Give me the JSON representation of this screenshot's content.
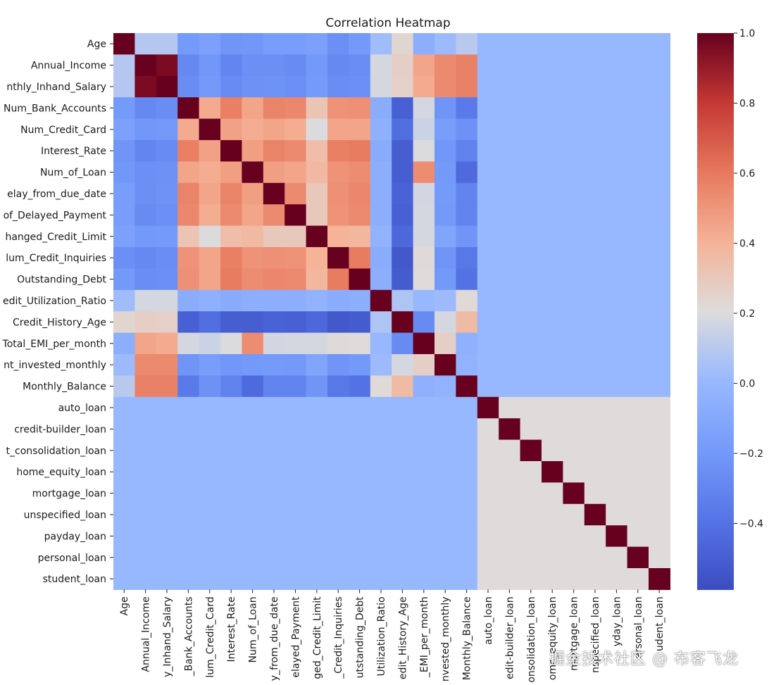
{
  "chart_data": {
    "type": "heatmap",
    "title": "Correlation Heatmap",
    "xlabel": "",
    "ylabel": "",
    "colormap": "coolwarm",
    "colorbar_range": [
      -0.59,
      1.0
    ],
    "colorbar_ticks": [
      -0.4,
      -0.2,
      0.0,
      0.2,
      0.4,
      0.6,
      0.8,
      1.0
    ],
    "colorbar_tick_labels": [
      "−0.4",
      "−0.2",
      "0.0",
      "0.2",
      "0.4",
      "0.6",
      "0.8",
      "1.0"
    ],
    "y_tick_labels": [
      "Age",
      "Annual_Income",
      "nthly_Inhand_Salary",
      "Num_Bank_Accounts",
      "Num_Credit_Card",
      "Interest_Rate",
      "Num_of_Loan",
      "elay_from_due_date",
      "of_Delayed_Payment",
      "hanged_Credit_Limit",
      "lum_Credit_Inquiries",
      "Outstanding_Debt",
      "edit_Utilization_Ratio",
      "Credit_History_Age",
      "Total_EMI_per_month",
      "nt_invested_monthly",
      "Monthly_Balance",
      "auto_loan",
      "credit-builder_loan",
      "t_consolidation_loan",
      "home_equity_loan",
      "mortgage_loan",
      "unspecified_loan",
      "payday_loan",
      "personal_loan",
      "student_loan"
    ],
    "x_tick_labels": [
      "Age",
      "Annual_Income",
      "y_Inhand_Salary",
      "_Bank_Accounts",
      "lum_Credit_Card",
      "Interest_Rate",
      "Num_of_Loan",
      "y_from_due_date",
      "elayed_Payment",
      "ged_Credit_Limit",
      "_Credit_Inquiries",
      "utstanding_Debt",
      "Utilization_Ratio",
      "edit_History_Age",
      "_EMI_per_month",
      "nvested_monthly",
      "Monthly_Balance",
      "auto_loan",
      "edit-builder_loan",
      "onsolidation_loan",
      "ome_equity_loan",
      "mortgage_loan",
      "nspecified_loan",
      "yday_loan",
      "ersonal_loan",
      "udent_loan"
    ],
    "matrix": [
      [
        1.0,
        0.09,
        0.09,
        -0.19,
        -0.15,
        -0.22,
        -0.21,
        -0.17,
        -0.17,
        -0.15,
        -0.25,
        -0.2,
        0.03,
        0.24,
        -0.06,
        0.02,
        0.1,
        0.0,
        0.0,
        0.0,
        0.0,
        0.0,
        0.0,
        0.0,
        0.0,
        0.0
      ],
      [
        0.09,
        1.0,
        0.96,
        -0.28,
        -0.21,
        -0.3,
        -0.25,
        -0.25,
        -0.27,
        -0.2,
        -0.28,
        -0.26,
        0.18,
        0.27,
        0.45,
        0.54,
        0.57,
        0.0,
        0.0,
        0.0,
        0.0,
        0.0,
        0.0,
        0.0,
        0.0,
        0.0
      ],
      [
        0.09,
        0.96,
        1.0,
        -0.26,
        -0.2,
        -0.27,
        -0.24,
        -0.23,
        -0.25,
        -0.19,
        -0.26,
        -0.25,
        0.18,
        0.26,
        0.43,
        0.54,
        0.57,
        0.0,
        0.0,
        0.0,
        0.0,
        0.0,
        0.0,
        0.0,
        0.0,
        0.0
      ],
      [
        -0.19,
        -0.28,
        -0.26,
        1.0,
        0.43,
        0.58,
        0.45,
        0.56,
        0.55,
        0.32,
        0.51,
        0.52,
        -0.07,
        -0.49,
        0.18,
        -0.22,
        -0.36,
        0.0,
        0.0,
        0.0,
        0.0,
        0.0,
        0.0,
        0.0,
        0.0,
        0.0
      ],
      [
        -0.15,
        -0.21,
        -0.2,
        0.43,
        1.0,
        0.46,
        0.42,
        0.45,
        0.42,
        0.2,
        0.45,
        0.45,
        -0.05,
        -0.42,
        0.15,
        -0.17,
        -0.24,
        0.0,
        0.0,
        0.0,
        0.0,
        0.0,
        0.0,
        0.0,
        0.0,
        0.0
      ],
      [
        -0.22,
        -0.3,
        -0.27,
        0.58,
        0.46,
        1.0,
        0.47,
        0.56,
        0.54,
        0.35,
        0.58,
        0.59,
        -0.08,
        -0.5,
        0.2,
        -0.21,
        -0.32,
        0.0,
        0.0,
        0.0,
        0.0,
        0.0,
        0.0,
        0.0,
        0.0,
        0.0
      ],
      [
        -0.21,
        -0.25,
        -0.24,
        0.45,
        0.42,
        0.47,
        1.0,
        0.47,
        0.45,
        0.37,
        0.51,
        0.53,
        -0.06,
        -0.5,
        0.53,
        -0.2,
        -0.44,
        0.0,
        0.0,
        0.0,
        0.0,
        0.0,
        0.0,
        0.0,
        0.0,
        0.0
      ],
      [
        -0.17,
        -0.25,
        -0.23,
        0.56,
        0.45,
        0.56,
        0.47,
        1.0,
        0.54,
        0.3,
        0.52,
        0.55,
        -0.06,
        -0.48,
        0.17,
        -0.19,
        -0.31,
        0.0,
        0.0,
        0.0,
        0.0,
        0.0,
        0.0,
        0.0,
        0.0,
        0.0
      ],
      [
        -0.17,
        -0.27,
        -0.25,
        0.55,
        0.42,
        0.54,
        0.45,
        0.54,
        1.0,
        0.3,
        0.51,
        0.54,
        -0.06,
        -0.49,
        0.18,
        -0.2,
        -0.31,
        0.0,
        0.0,
        0.0,
        0.0,
        0.0,
        0.0,
        0.0,
        0.0,
        0.0
      ],
      [
        -0.15,
        -0.2,
        -0.19,
        0.32,
        0.2,
        0.35,
        0.37,
        0.3,
        0.3,
        1.0,
        0.4,
        0.38,
        -0.03,
        -0.45,
        0.18,
        -0.12,
        -0.22,
        0.0,
        0.0,
        0.0,
        0.0,
        0.0,
        0.0,
        0.0,
        0.0,
        0.0
      ],
      [
        -0.25,
        -0.28,
        -0.26,
        0.51,
        0.45,
        0.58,
        0.51,
        0.52,
        0.51,
        0.4,
        1.0,
        0.59,
        -0.07,
        -0.53,
        0.22,
        -0.22,
        -0.37,
        0.0,
        0.0,
        0.0,
        0.0,
        0.0,
        0.0,
        0.0,
        0.0,
        0.0
      ],
      [
        -0.2,
        -0.26,
        -0.25,
        0.52,
        0.45,
        0.59,
        0.53,
        0.55,
        0.54,
        0.38,
        0.59,
        1.0,
        -0.06,
        -0.51,
        0.21,
        -0.2,
        -0.4,
        0.0,
        0.0,
        0.0,
        0.0,
        0.0,
        0.0,
        0.0,
        0.0,
        0.0
      ],
      [
        0.03,
        0.18,
        0.18,
        -0.07,
        -0.05,
        -0.08,
        -0.06,
        -0.06,
        -0.06,
        -0.03,
        -0.07,
        -0.06,
        1.0,
        0.07,
        0.0,
        0.02,
        0.22,
        0.0,
        0.0,
        0.0,
        0.0,
        0.0,
        0.0,
        0.0,
        0.0,
        0.0
      ],
      [
        0.24,
        0.27,
        0.26,
        -0.49,
        -0.42,
        -0.5,
        -0.5,
        -0.48,
        -0.49,
        -0.45,
        -0.53,
        -0.51,
        0.07,
        1.0,
        -0.27,
        0.18,
        0.36,
        0.0,
        0.0,
        0.0,
        0.0,
        0.0,
        0.0,
        0.0,
        0.0,
        0.0
      ],
      [
        -0.06,
        0.45,
        0.43,
        0.18,
        0.15,
        0.2,
        0.53,
        0.17,
        0.18,
        0.18,
        0.22,
        0.21,
        0.0,
        -0.27,
        1.0,
        0.27,
        -0.05,
        0.0,
        0.0,
        0.0,
        0.0,
        0.0,
        0.0,
        0.0,
        0.0,
        0.0
      ],
      [
        0.02,
        0.54,
        0.54,
        -0.22,
        -0.17,
        -0.21,
        -0.2,
        -0.19,
        -0.2,
        -0.12,
        -0.22,
        -0.2,
        0.02,
        0.18,
        0.27,
        1.0,
        -0.03,
        0.0,
        0.0,
        0.0,
        0.0,
        0.0,
        0.0,
        0.0,
        0.0,
        0.0
      ],
      [
        0.1,
        0.57,
        0.57,
        -0.36,
        -0.24,
        -0.32,
        -0.44,
        -0.31,
        -0.31,
        -0.22,
        -0.37,
        -0.4,
        0.22,
        0.36,
        -0.05,
        -0.03,
        1.0,
        0.0,
        0.0,
        0.0,
        0.0,
        0.0,
        0.0,
        0.0,
        0.0,
        0.0
      ],
      [
        0.0,
        0.0,
        0.0,
        0.0,
        0.0,
        0.0,
        0.0,
        0.0,
        0.0,
        0.0,
        0.0,
        0.0,
        0.0,
        0.0,
        0.0,
        0.0,
        0.0,
        1.0,
        0.21,
        0.21,
        0.21,
        0.21,
        0.21,
        0.21,
        0.21,
        0.21
      ],
      [
        0.0,
        0.0,
        0.0,
        0.0,
        0.0,
        0.0,
        0.0,
        0.0,
        0.0,
        0.0,
        0.0,
        0.0,
        0.0,
        0.0,
        0.0,
        0.0,
        0.0,
        0.21,
        1.0,
        0.21,
        0.21,
        0.21,
        0.21,
        0.21,
        0.21,
        0.21
      ],
      [
        0.0,
        0.0,
        0.0,
        0.0,
        0.0,
        0.0,
        0.0,
        0.0,
        0.0,
        0.0,
        0.0,
        0.0,
        0.0,
        0.0,
        0.0,
        0.0,
        0.0,
        0.21,
        0.21,
        1.0,
        0.21,
        0.21,
        0.21,
        0.21,
        0.21,
        0.21
      ],
      [
        0.0,
        0.0,
        0.0,
        0.0,
        0.0,
        0.0,
        0.0,
        0.0,
        0.0,
        0.0,
        0.0,
        0.0,
        0.0,
        0.0,
        0.0,
        0.0,
        0.0,
        0.21,
        0.21,
        0.21,
        1.0,
        0.21,
        0.21,
        0.21,
        0.21,
        0.21
      ],
      [
        0.0,
        0.0,
        0.0,
        0.0,
        0.0,
        0.0,
        0.0,
        0.0,
        0.0,
        0.0,
        0.0,
        0.0,
        0.0,
        0.0,
        0.0,
        0.0,
        0.0,
        0.21,
        0.21,
        0.21,
        0.21,
        1.0,
        0.21,
        0.21,
        0.21,
        0.21
      ],
      [
        0.0,
        0.0,
        0.0,
        0.0,
        0.0,
        0.0,
        0.0,
        0.0,
        0.0,
        0.0,
        0.0,
        0.0,
        0.0,
        0.0,
        0.0,
        0.0,
        0.0,
        0.21,
        0.21,
        0.21,
        0.21,
        0.21,
        1.0,
        0.21,
        0.21,
        0.21
      ],
      [
        0.0,
        0.0,
        0.0,
        0.0,
        0.0,
        0.0,
        0.0,
        0.0,
        0.0,
        0.0,
        0.0,
        0.0,
        0.0,
        0.0,
        0.0,
        0.0,
        0.0,
        0.21,
        0.21,
        0.21,
        0.21,
        0.21,
        0.21,
        1.0,
        0.21,
        0.21
      ],
      [
        0.0,
        0.0,
        0.0,
        0.0,
        0.0,
        0.0,
        0.0,
        0.0,
        0.0,
        0.0,
        0.0,
        0.0,
        0.0,
        0.0,
        0.0,
        0.0,
        0.0,
        0.21,
        0.21,
        0.21,
        0.21,
        0.21,
        0.21,
        0.21,
        1.0,
        0.21
      ],
      [
        0.0,
        0.0,
        0.0,
        0.0,
        0.0,
        0.0,
        0.0,
        0.0,
        0.0,
        0.0,
        0.0,
        0.0,
        0.0,
        0.0,
        0.0,
        0.0,
        0.0,
        0.21,
        0.21,
        0.21,
        0.21,
        0.21,
        0.21,
        0.21,
        0.21,
        1.0
      ]
    ]
  },
  "watermark": "掘金技术社区 @ 布客飞龙"
}
